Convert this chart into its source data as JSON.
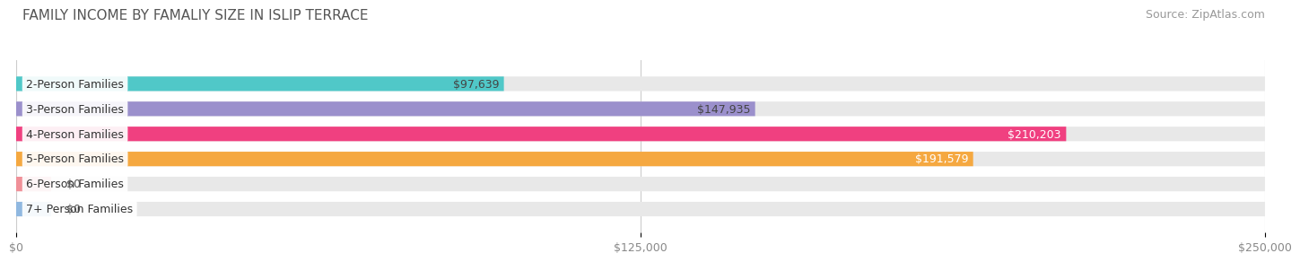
{
  "title": "FAMILY INCOME BY FAMALIY SIZE IN ISLIP TERRACE",
  "source": "Source: ZipAtlas.com",
  "categories": [
    "2-Person Families",
    "3-Person Families",
    "4-Person Families",
    "5-Person Families",
    "6-Person Families",
    "7+ Person Families"
  ],
  "values": [
    97639,
    147935,
    210203,
    191579,
    0,
    0
  ],
  "bar_colors": [
    "#50C8C8",
    "#9B90CC",
    "#F04080",
    "#F5A840",
    "#F09098",
    "#90B8E0"
  ],
  "label_colors": [
    "#444444",
    "#444444",
    "#ffffff",
    "#ffffff",
    "#444444",
    "#444444"
  ],
  "value_labels": [
    "$97,639",
    "$147,935",
    "$210,203",
    "$191,579",
    "$0",
    "$0"
  ],
  "x_max": 250000,
  "x_ticks": [
    0,
    125000,
    250000
  ],
  "x_tick_labels": [
    "$0",
    "$125,000",
    "$250,000"
  ],
  "bg_bar_color": "#e8e8e8",
  "title_fontsize": 11,
  "source_fontsize": 9,
  "label_fontsize": 9,
  "value_fontsize": 9,
  "background_color": "#ffffff",
  "stub_values": [
    6250,
    6250
  ]
}
